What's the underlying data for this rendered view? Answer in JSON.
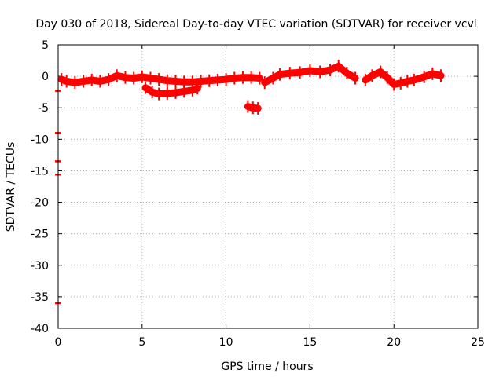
{
  "chart_data": {
    "type": "scatter",
    "title": "Day 030 of 2018, Sidereal Day-to-day VTEC variation (SDTVAR) for receiver vcvl",
    "xlabel": "GPS time / hours",
    "ylabel": "SDTVAR / TECUs",
    "xlim": [
      0,
      25
    ],
    "ylim": [
      -40,
      5
    ],
    "grid": true,
    "x_ticks": [
      0,
      5,
      10,
      15,
      20,
      25
    ],
    "x_tick_labels": [
      "0",
      "5",
      "10",
      "15",
      "20",
      "25"
    ],
    "y_ticks": [
      5,
      0,
      -5,
      -10,
      -15,
      -20,
      -25,
      -30,
      -35,
      -40
    ],
    "y_tick_labels": [
      "5",
      "0",
      "-5",
      "-10",
      "-15",
      "-20",
      "-25",
      "-30",
      "-35",
      "-40"
    ],
    "series": [
      {
        "name": "SDTVAR",
        "color": "#ff0000",
        "segments": [
          {
            "x": [
              0.2,
              0.5,
              1.0,
              1.5,
              2.0,
              2.5,
              3.0,
              3.5,
              4.0,
              4.5,
              5.0,
              5.5,
              6.0,
              6.5,
              7.0,
              7.5,
              8.0,
              8.5,
              9.0,
              9.5,
              10.0,
              10.5,
              11.0,
              11.5,
              12.0
            ],
            "y": [
              -0.5,
              -0.8,
              -1.0,
              -0.8,
              -0.6,
              -0.8,
              -0.5,
              0.1,
              -0.2,
              -0.3,
              -0.1,
              -0.3,
              -0.5,
              -0.7,
              -0.8,
              -0.9,
              -0.9,
              -0.8,
              -0.7,
              -0.6,
              -0.5,
              -0.3,
              -0.2,
              -0.2,
              -0.3
            ]
          },
          {
            "x": [
              5.2,
              5.6,
              6.0,
              6.5,
              7.0,
              7.5,
              8.0,
              8.3
            ],
            "y": [
              -1.8,
              -2.5,
              -2.8,
              -2.7,
              -2.6,
              -2.4,
              -2.2,
              -1.9
            ]
          },
          {
            "x": [
              11.3,
              11.6,
              11.9
            ],
            "y": [
              -4.8,
              -5.0,
              -5.1
            ]
          },
          {
            "x": [
              12.3,
              12.8,
              13.2,
              13.8,
              14.4,
              15.0,
              15.6,
              16.2,
              16.7,
              17.2,
              17.7
            ],
            "y": [
              -1.0,
              -0.3,
              0.3,
              0.5,
              0.6,
              0.9,
              0.7,
              1.0,
              1.6,
              0.5,
              -0.3
            ]
          },
          {
            "x": [
              18.3,
              18.7,
              19.2,
              19.6,
              20.0,
              20.4,
              20.8,
              21.2,
              21.8,
              22.3,
              22.8
            ],
            "y": [
              -0.6,
              0.1,
              0.7,
              -0.2,
              -1.3,
              -1.1,
              -0.8,
              -0.6,
              -0.1,
              0.4,
              0.1
            ]
          }
        ],
        "isolated_points": [
          {
            "x": 0.0,
            "y": -2.3
          },
          {
            "x": 0.0,
            "y": -9.0
          },
          {
            "x": 0.0,
            "y": -13.5
          },
          {
            "x": 0.0,
            "y": -15.6
          },
          {
            "x": 0.0,
            "y": -36.0
          }
        ]
      }
    ]
  }
}
